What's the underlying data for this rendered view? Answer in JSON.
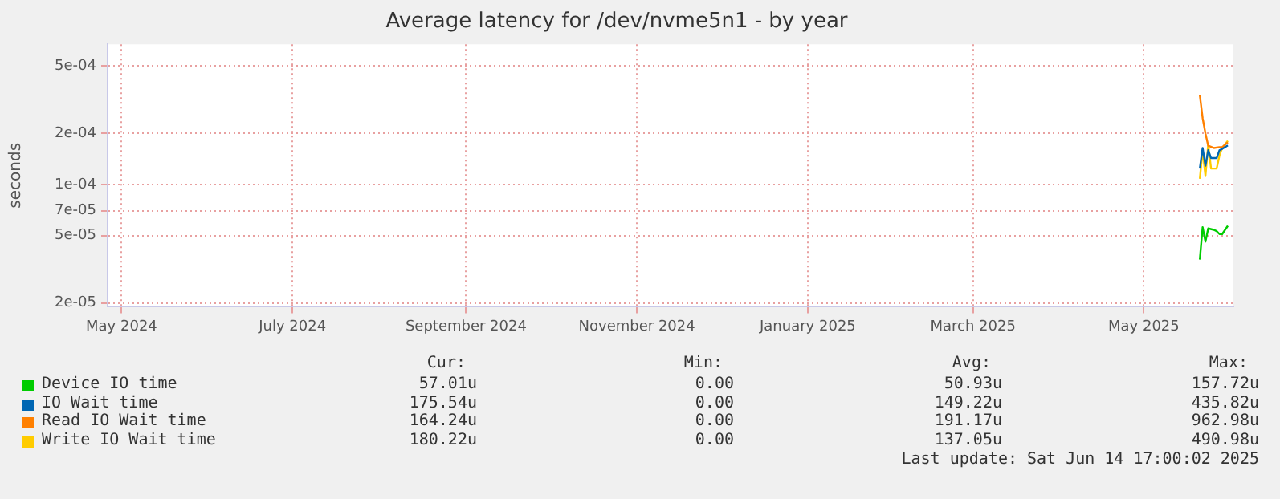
{
  "chart_data": {
    "type": "line",
    "title": "Average latency for /dev/nvme5n1 - by year",
    "ylabel": "seconds",
    "log": "y",
    "grid": true,
    "legend": "bottom",
    "marker": "none",
    "line_style": "solid",
    "xlim": [
      "2024-04-26",
      "2025-06-02"
    ],
    "xticks": [
      {
        "value": "2024-05-01",
        "label": "May 2024"
      },
      {
        "value": "2024-07-01",
        "label": "July 2024"
      },
      {
        "value": "2024-09-01",
        "label": "September 2024"
      },
      {
        "value": "2024-11-01",
        "label": "November 2024"
      },
      {
        "value": "2025-01-01",
        "label": "January 2025"
      },
      {
        "value": "2025-03-01",
        "label": "March 2025"
      },
      {
        "value": "2025-05-01",
        "label": "May 2025"
      }
    ],
    "ylim": [
      1.9e-05,
      0.00067
    ],
    "yticks": [
      {
        "value": 2e-05,
        "label": "2e-05"
      },
      {
        "value": 5e-05,
        "label": "5e-05"
      },
      {
        "value": 7e-05,
        "label": "7e-05"
      },
      {
        "value": 0.0001,
        "label": "1e-04"
      },
      {
        "value": 0.0002,
        "label": "2e-04"
      },
      {
        "value": 0.0005,
        "label": "5e-04"
      }
    ],
    "series": [
      {
        "name": "Device IO time",
        "color": "#00cc00",
        "x": [
          "2025-05-21",
          "2025-05-22",
          "2025-05-23",
          "2025-05-24",
          "2025-05-26",
          "2025-05-27",
          "2025-05-28",
          "2025-05-29",
          "2025-05-31"
        ],
        "values": [
          3.6e-05,
          5.6e-05,
          4.6e-05,
          5.5e-05,
          5.4e-05,
          5.3e-05,
          5.1e-05,
          5.1e-05,
          5.7e-05
        ]
      },
      {
        "name": "IO Wait time",
        "color": "#0066b3",
        "x": [
          "2025-05-21",
          "2025-05-22",
          "2025-05-23",
          "2025-05-24",
          "2025-05-25",
          "2025-05-27",
          "2025-05-28",
          "2025-05-29",
          "2025-05-31"
        ],
        "values": [
          0.000124,
          0.000164,
          0.000129,
          0.000159,
          0.000143,
          0.000143,
          0.000159,
          0.000162,
          0.00017
        ]
      },
      {
        "name": "Read IO Wait time",
        "color": "#ff8000",
        "x": [
          "2025-05-21",
          "2025-05-22",
          "2025-05-23",
          "2025-05-24",
          "2025-05-26",
          "2025-05-28",
          "2025-05-29",
          "2025-05-31"
        ],
        "values": [
          0.000336,
          0.000246,
          0.0002,
          0.000169,
          0.000164,
          0.000166,
          0.000166,
          0.000177
        ]
      },
      {
        "name": "Write IO Wait time",
        "color": "#ffcc00",
        "x": [
          "2025-05-21",
          "2025-05-22",
          "2025-05-23",
          "2025-05-24",
          "2025-05-25",
          "2025-05-27",
          "2025-05-28",
          "2025-05-29",
          "2025-05-31"
        ],
        "values": [
          0.000108,
          0.000159,
          0.000112,
          0.000172,
          0.000124,
          0.000124,
          0.000148,
          0.000164,
          0.000181
        ]
      }
    ],
    "annotations": [
      "Cur:",
      "Min:",
      "Avg:",
      "Max:",
      "57.01u",
      "0.00",
      "50.93u",
      "157.72u",
      "175.54u",
      "0.00",
      "149.22u",
      "435.82u",
      "164.24u",
      "0.00",
      "191.17u",
      "962.98u",
      "180.22u",
      "0.00",
      "137.05u",
      "490.98u",
      "Last update: Sat Jun 14 17:00:02 2025"
    ]
  }
}
